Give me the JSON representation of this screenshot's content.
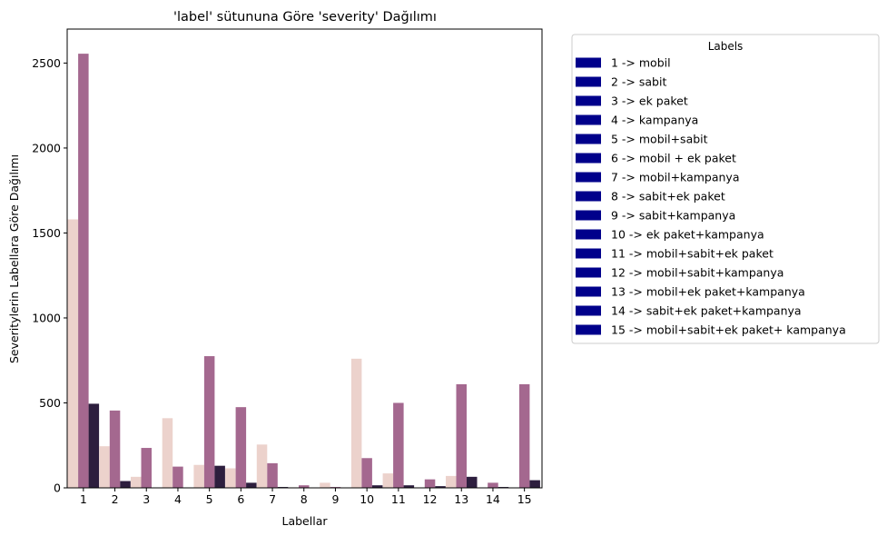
{
  "chart_data": {
    "type": "bar",
    "title": "'label' sütununa Göre 'severity' Dağılımı",
    "xlabel": "Labellar",
    "ylabel": "Severitylerin Labellara Göre Dağılımı",
    "categories": [
      "1",
      "2",
      "3",
      "4",
      "5",
      "6",
      "7",
      "8",
      "9",
      "10",
      "11",
      "12",
      "13",
      "14",
      "15"
    ],
    "ylim": [
      0,
      2700
    ],
    "yticks": [
      0,
      500,
      1000,
      1500,
      2000,
      2500
    ],
    "grid": false,
    "series": [
      {
        "color": "#ecd2cc",
        "values": [
          1580,
          245,
          65,
          410,
          135,
          115,
          255,
          3,
          30,
          760,
          85,
          0,
          70,
          0,
          0
        ]
      },
      {
        "color": "#a4688f",
        "values": [
          2555,
          455,
          235,
          125,
          775,
          475,
          145,
          15,
          5,
          175,
          500,
          50,
          610,
          30,
          610
        ]
      },
      {
        "color": "#2d1e3e",
        "values": [
          495,
          40,
          0,
          0,
          130,
          30,
          5,
          0,
          0,
          15,
          15,
          10,
          65,
          5,
          45
        ]
      }
    ],
    "legend": {
      "title": "Labels",
      "placement": "outside-right",
      "swatch_color": "#00008b",
      "entries": [
        "1 -> mobil",
        "2 -> sabit",
        "3 -> ek paket",
        "4 -> kampanya",
        "5 -> mobil+sabit",
        "6 -> mobil + ek paket",
        "7 -> mobil+kampanya",
        "8 -> sabit+ek paket",
        "9 -> sabit+kampanya",
        "10 -> ek paket+kampanya",
        "11 -> mobil+sabit+ek paket",
        "12 -> mobil+sabit+kampanya",
        "13 -> mobil+ek paket+kampanya",
        "14 -> sabit+ek paket+kampanya",
        "15 -> mobil+sabit+ek paket+ kampanya"
      ]
    }
  }
}
